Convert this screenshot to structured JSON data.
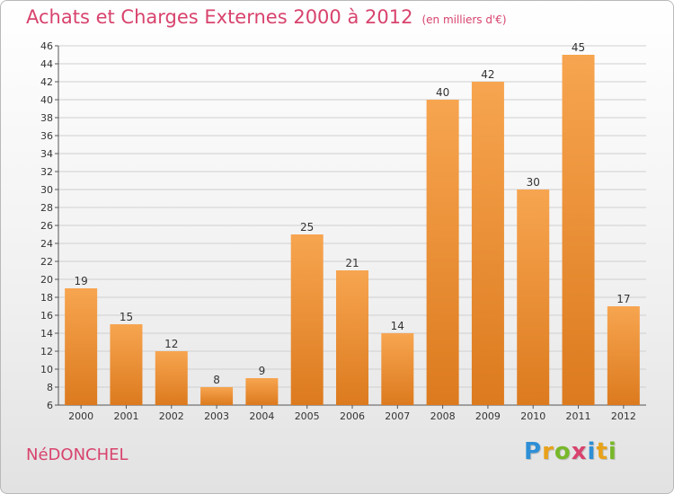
{
  "header": {
    "title": "Achats et Charges Externes 2000 à 2012",
    "subtitle": "(en milliers d'€)"
  },
  "footer": {
    "town": "NéDONCHEL",
    "logo_letters": [
      "P",
      "r",
      "o",
      "x",
      "i",
      "t",
      "i"
    ]
  },
  "colors": {
    "title": "#d8436d",
    "bar_light": "#f7a550",
    "bar_dark": "#e07f22",
    "grid": "#cfcfcf"
  },
  "chart_data": {
    "type": "bar",
    "title": "Achats et Charges Externes 2000 à 2012",
    "subtitle": "(en milliers d'€)",
    "categories": [
      "2000",
      "2001",
      "2002",
      "2003",
      "2004",
      "2005",
      "2006",
      "2007",
      "2008",
      "2009",
      "2010",
      "2011",
      "2012"
    ],
    "values": [
      19,
      15,
      12,
      8,
      9,
      25,
      21,
      14,
      40,
      42,
      30,
      45,
      17
    ],
    "ylim": [
      6,
      46
    ],
    "yticks": [
      6,
      8,
      10,
      12,
      14,
      16,
      18,
      20,
      22,
      24,
      26,
      28,
      30,
      32,
      34,
      36,
      38,
      40,
      42,
      44,
      46
    ],
    "grid": true,
    "xlabel": "",
    "ylabel": ""
  }
}
